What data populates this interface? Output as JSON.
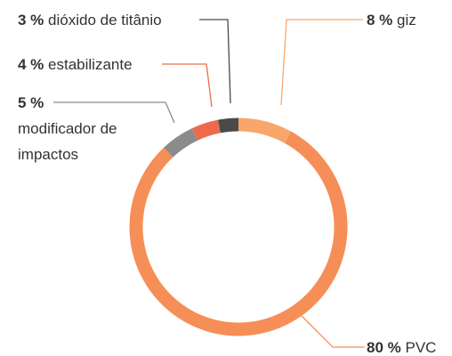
{
  "chart_data": {
    "type": "donut",
    "categories": [
      "giz",
      "PVC",
      "modificador de impactos",
      "estabilizante",
      "dióxido de titânio"
    ],
    "values": [
      8,
      80,
      5,
      4,
      3
    ],
    "value_labels": [
      "8 %",
      "80 %",
      "5 %",
      "4 %",
      "3 %"
    ],
    "colors": [
      "#f9a66b",
      "#f58f57",
      "#8b8b8b",
      "#ef6a4b",
      "#4a4a4a"
    ]
  }
}
